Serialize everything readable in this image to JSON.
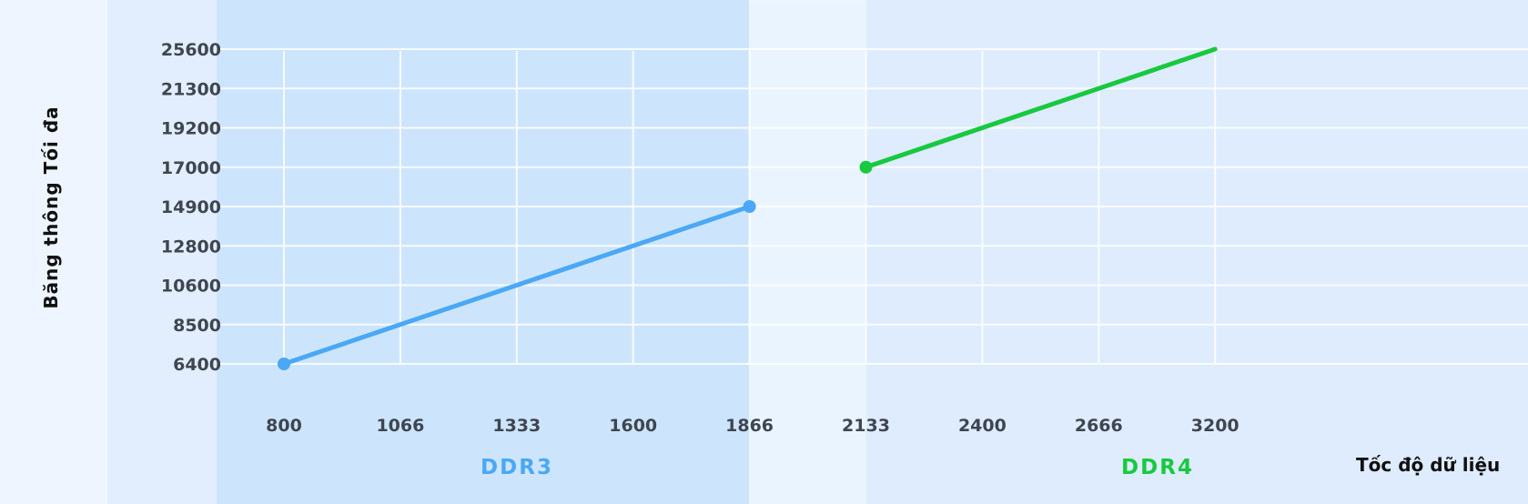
{
  "chart_data": {
    "type": "line",
    "title": "",
    "xlabel": "Tốc độ dữ liệu",
    "ylabel": "Băng thông Tối đa",
    "x_categories": [
      "800",
      "1066",
      "1333",
      "1600",
      "1866",
      "2133",
      "2400",
      "2666",
      "3200"
    ],
    "y_categories": [
      "6400",
      "8500",
      "10600",
      "12800",
      "14900",
      "17000",
      "19200",
      "21300",
      "25600"
    ],
    "grid": true,
    "groups": [
      {
        "label": "DDR3",
        "color": "#4aa8f5",
        "from": "800",
        "to": "1866"
      },
      {
        "label": "DDR4",
        "color": "#18c940",
        "from": "2133",
        "to": "3200"
      }
    ],
    "series": [
      {
        "name": "DDR3",
        "color": "#4aa8f5",
        "points": [
          {
            "x": "800",
            "y": "6400"
          },
          {
            "x": "1866",
            "y": "14900"
          }
        ],
        "markers": [
          "800",
          "1866"
        ]
      },
      {
        "name": "DDR4",
        "color": "#18c940",
        "points": [
          {
            "x": "2133",
            "y": "17000"
          },
          {
            "x": "3200",
            "y": "25600"
          }
        ],
        "markers": [
          "2133"
        ]
      }
    ]
  }
}
